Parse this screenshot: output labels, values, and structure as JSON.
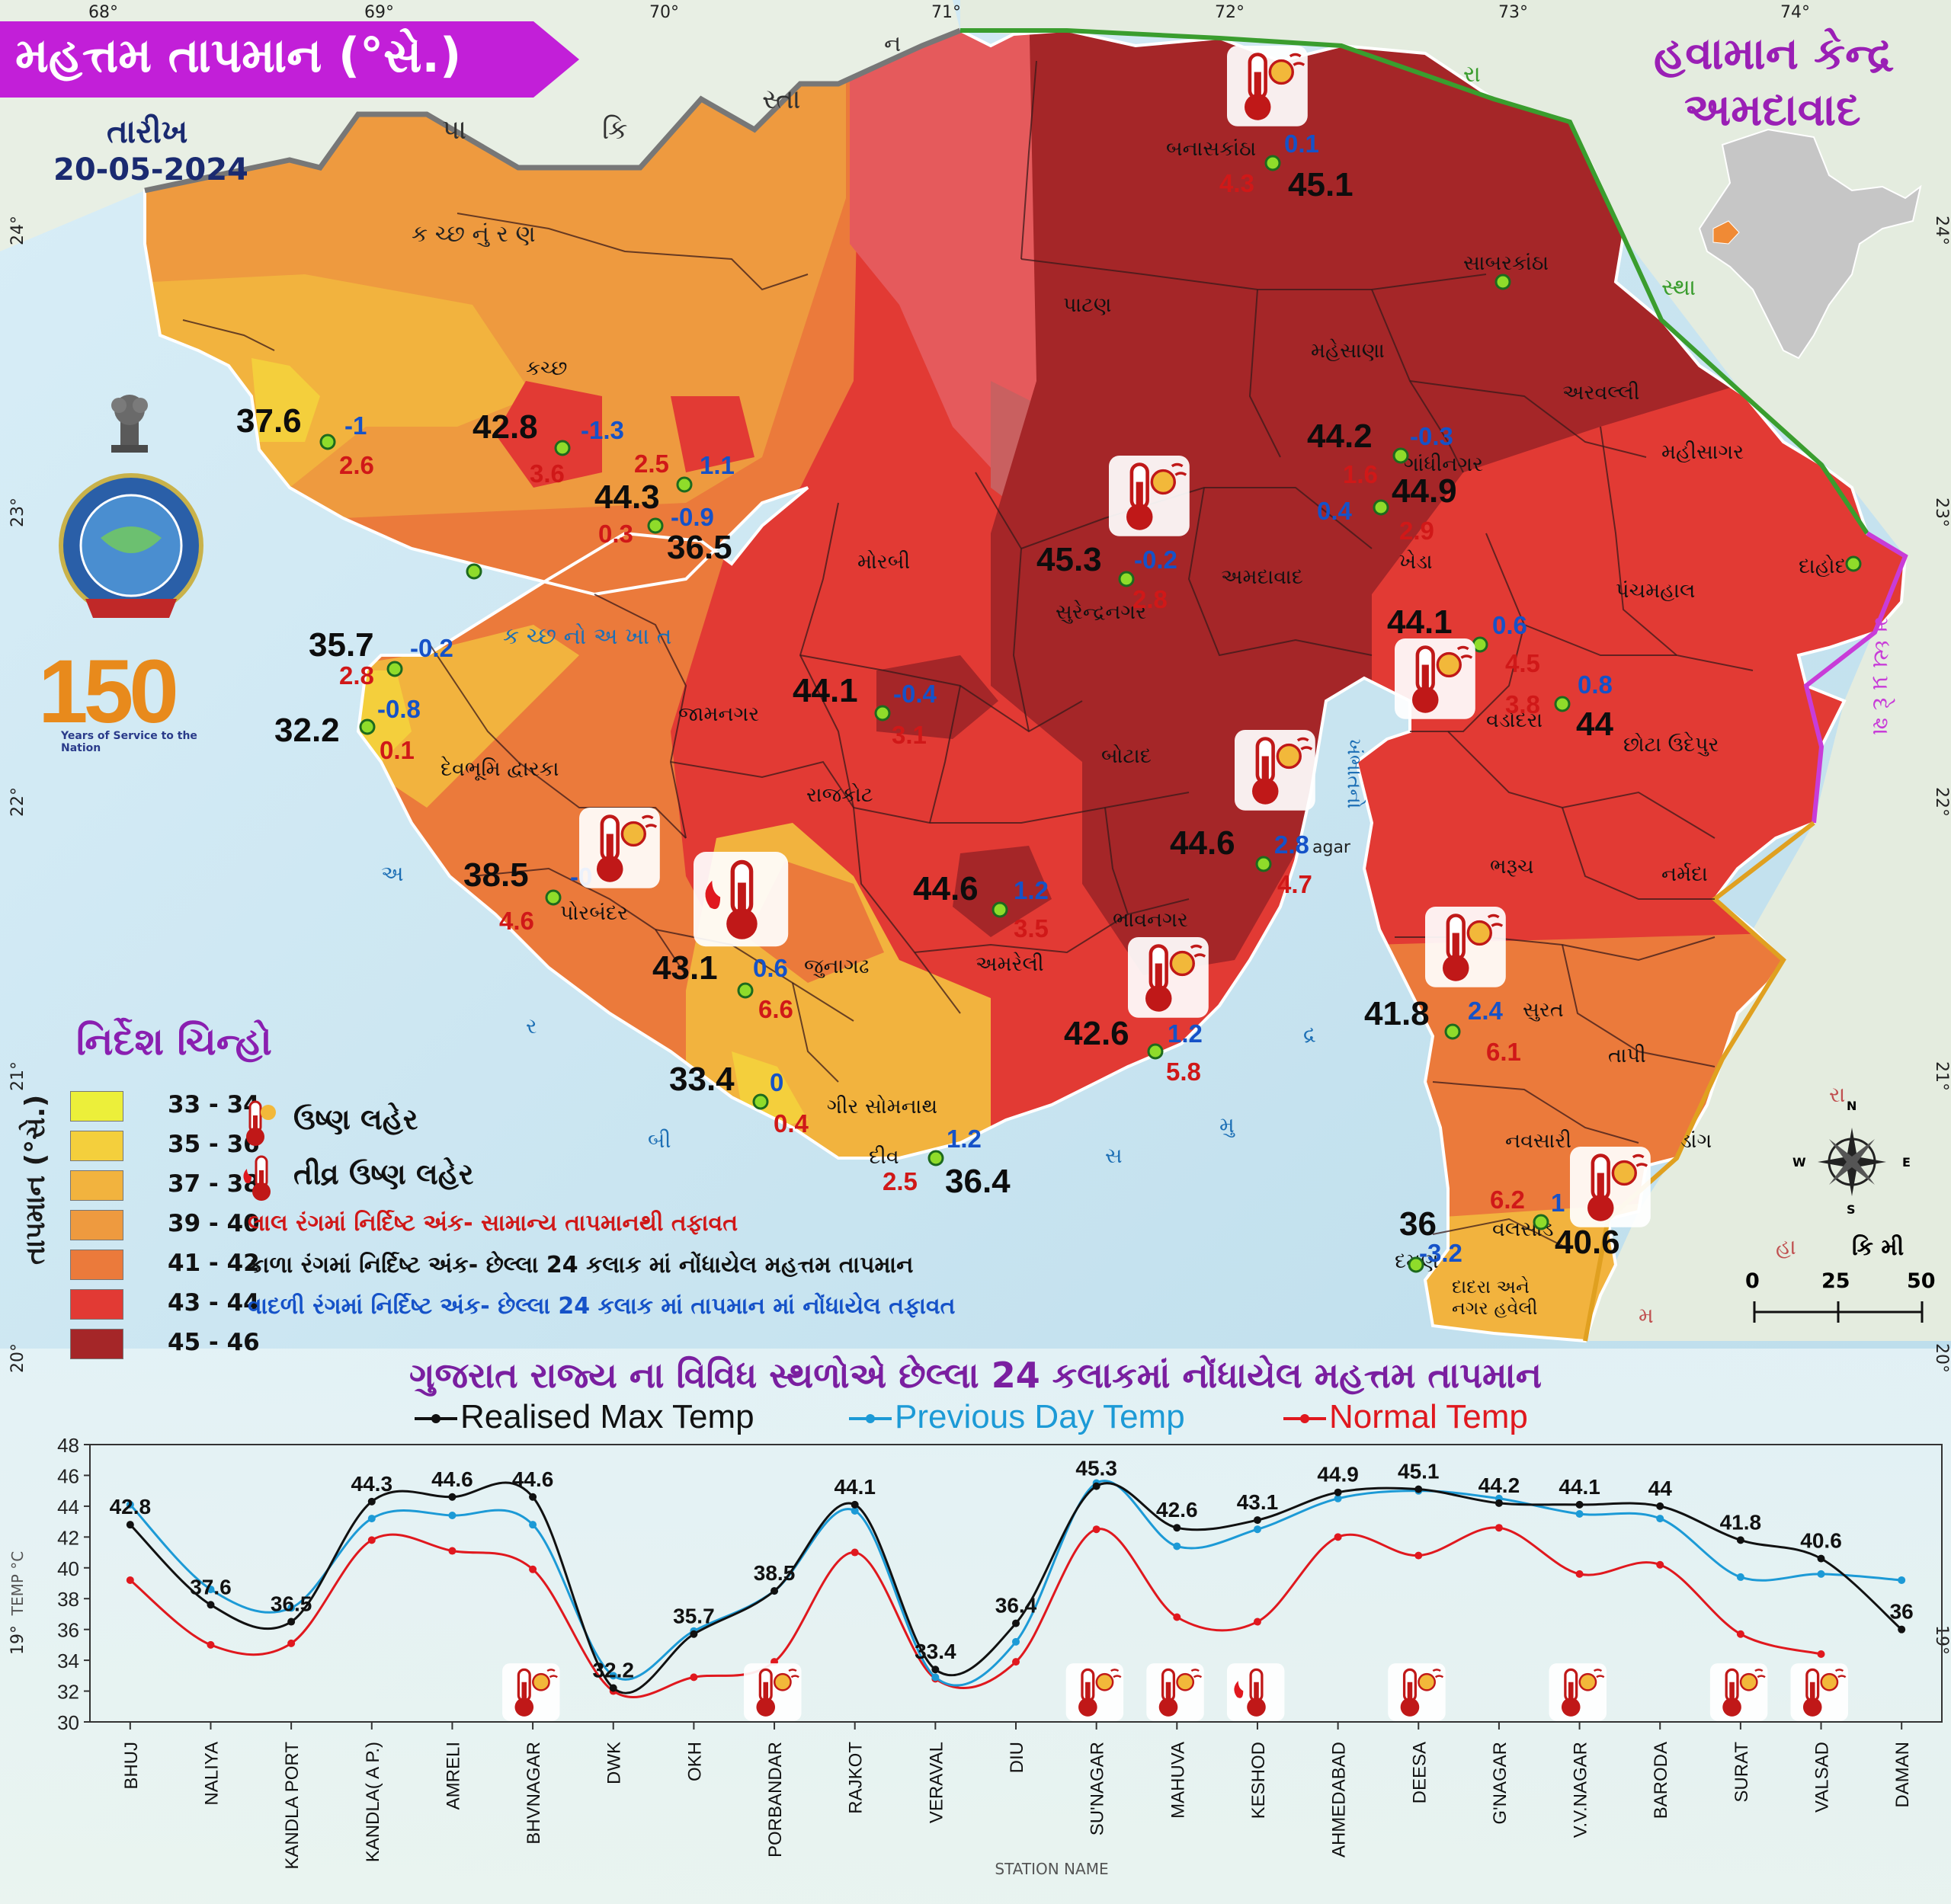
{
  "header": {
    "title": "મહત્તમ તાપમાન (°સે.)",
    "date_label": "તારીખ",
    "date": "20-05-2024",
    "centre_line1": "હવામાન કેન્દ્ર",
    "centre_line2": "અમદાવાદ",
    "anniversary_text": "Years of Service to the Nation",
    "anniversary_number": "150"
  },
  "coords": {
    "lon": [
      "68°",
      "69°",
      "70°",
      "71°",
      "72°",
      "73°",
      "74°"
    ],
    "lat": [
      "24°",
      "23°",
      "22°",
      "21°",
      "20°",
      "19°"
    ]
  },
  "places": [
    {
      "name": "કચ્છ",
      "k": "kutch"
    },
    {
      "name": "મોરબી",
      "k": "morbi"
    },
    {
      "name": "જામનગર",
      "k": "jamnagar"
    },
    {
      "name": "દેવભૂમિ દ્વારકા",
      "k": "dwarka"
    },
    {
      "name": "રાજકોટ",
      "k": "rajkot"
    },
    {
      "name": "પોરબંદર",
      "k": "porbandar"
    },
    {
      "name": "જુનાગઢ",
      "k": "junagadh"
    },
    {
      "name": "અમરેલી",
      "k": "amreli"
    },
    {
      "name": "ભાવનગર",
      "k": "bhavnagar"
    },
    {
      "name": "ગીર સોમનાથ",
      "k": "gir"
    },
    {
      "name": "દીવ",
      "k": "diu"
    },
    {
      "name": "બોટાદ",
      "k": "botad"
    },
    {
      "name": "સુરેન્દ્રનગર",
      "k": "snagar"
    },
    {
      "name": "પાટણ",
      "k": "patan"
    },
    {
      "name": "બનાસકાંઠા",
      "k": "banas"
    },
    {
      "name": "મહેસાણા",
      "k": "mehsana"
    },
    {
      "name": "સાબરકાંઠા",
      "k": "sabar"
    },
    {
      "name": "અરવલ્લી",
      "k": "aravalli"
    },
    {
      "name": "ગાંધીનગર",
      "k": "gnagar"
    },
    {
      "name": "અમદાવાદ",
      "k": "ahmedabad"
    },
    {
      "name": "ખેડા",
      "k": "kheda"
    },
    {
      "name": "મહીસાગર",
      "k": "mahisagar"
    },
    {
      "name": "પંચમહાલ",
      "k": "panch"
    },
    {
      "name": "દાહોદ",
      "k": "dahod"
    },
    {
      "name": "વડોદરા",
      "k": "vadodara"
    },
    {
      "name": "છોટા ઉદેપુર",
      "k": "chhota"
    },
    {
      "name": "ભરૂચ",
      "k": "bharuch"
    },
    {
      "name": "નર્મદા",
      "k": "narmada"
    },
    {
      "name": "સુરત",
      "k": "surat"
    },
    {
      "name": "તાપી",
      "k": "tapi"
    },
    {
      "name": "નવસારી",
      "k": "navsari"
    },
    {
      "name": "ડાંગ",
      "k": "dang"
    },
    {
      "name": "વલસાડ",
      "k": "valsad"
    },
    {
      "name": "દમણ",
      "k": "daman"
    },
    {
      "name": "દાદરા અને નગર હવેલી",
      "k": "dnh"
    }
  ],
  "map_texts": [
    {
      "t": "ક   ચ્છ   નું   ર   ણ",
      "k": "rann"
    },
    {
      "t": "ક  ચ્છ  નો  અ  ખા  ત",
      "k": "gulf"
    },
    {
      "t": "ખંભાતનો",
      "k": "khambhat"
    },
    {
      "t": "પા",
      "k": "pa"
    },
    {
      "t": "કિ",
      "k": "ki"
    },
    {
      "t": "સ્તા",
      "k": "sta"
    },
    {
      "t": "ન",
      "k": "na"
    },
    {
      "t": "રા",
      "k": "ra"
    },
    {
      "t": "સ્થા",
      "k": "stha"
    },
    {
      "t": "મ ધ્ય પ્ર દે શ",
      "k": "mp"
    },
    {
      "t": "અ",
      "k": "a"
    },
    {
      "t": "ર",
      "k": "r"
    },
    {
      "t": "બી",
      "k": "bi"
    },
    {
      "t": "સ",
      "k": "sa"
    },
    {
      "t": "મુ",
      "k": "mu"
    },
    {
      "t": "દ્ર",
      "k": "dra"
    },
    {
      "t": "મ",
      "k": "m"
    },
    {
      "t": "હા",
      "k": "ha"
    },
    {
      "t": "રા",
      "k": "ra2"
    },
    {
      "t": "agar",
      "k": "agar"
    }
  ],
  "stations": [
    {
      "k": "naliya",
      "max": "37.6",
      "prev": "-1",
      "diff": "2.6"
    },
    {
      "k": "bhuj",
      "max": "42.8",
      "prev": "-1.3",
      "diff": "3.6"
    },
    {
      "k": "kandla_ap",
      "max": "44.3",
      "prev": "1.1",
      "diff": "2.5"
    },
    {
      "k": "kandla_port",
      "max": "36.5",
      "prev": "-0.9",
      "diff": "0.3"
    },
    {
      "k": "okha",
      "max": "35.7",
      "prev": "-0.2",
      "diff": "2.8"
    },
    {
      "k": "dwarka",
      "max": "32.2",
      "prev": "-0.8",
      "diff": "0.1"
    },
    {
      "k": "porbandar",
      "max": "38.5",
      "prev": "-0",
      "diff": "4.6"
    },
    {
      "k": "keshod",
      "max": "43.1",
      "prev": "0.6",
      "diff": "6.6"
    },
    {
      "k": "veraval",
      "max": "33.4",
      "prev": "0",
      "diff": "0.4"
    },
    {
      "k": "diu",
      "max": "36.4",
      "prev": "1.2",
      "diff": "2.5"
    },
    {
      "k": "rajkot",
      "max": "44.1",
      "prev": "-0.4",
      "diff": "3.1"
    },
    {
      "k": "amreli",
      "max": "44.6",
      "prev": "1.2",
      "diff": "3.5"
    },
    {
      "k": "mahuva",
      "max": "42.6",
      "prev": "1.2",
      "diff": "5.8"
    },
    {
      "k": "bhavnagar",
      "max": "44.6",
      "prev": "2.8",
      "diff": "4.7"
    },
    {
      "k": "snagar",
      "max": "45.3",
      "prev": "-0.2",
      "diff": "2.8"
    },
    {
      "k": "deesa",
      "max": "45.1",
      "prev": "0.1",
      "diff": "4.3"
    },
    {
      "k": "gnagar",
      "max": "44.2",
      "prev": "-0.3",
      "diff": "1.6"
    },
    {
      "k": "ahmedabad",
      "max": "44.9",
      "prev": "0.4",
      "diff": "2.9"
    },
    {
      "k": "vvnagar",
      "max": "44.1",
      "prev": "0.6",
      "diff": "4.5"
    },
    {
      "k": "baroda",
      "max": "44",
      "prev": "0.8",
      "diff": "3.8"
    },
    {
      "k": "surat",
      "max": "41.8",
      "prev": "2.4",
      "diff": "6.1"
    },
    {
      "k": "valsad",
      "max": "40.6",
      "prev": "1",
      "diff": "6.2"
    },
    {
      "k": "daman",
      "max": "36",
      "prev": "-3.2",
      "diff": ""
    }
  ],
  "legend": {
    "heading": "નિર્દેશ ચિન્હો",
    "vertical_label": "તાપમાન (°સે.)",
    "ranges": [
      {
        "label": "33 - 34",
        "color": "#ecef3a"
      },
      {
        "label": "35 - 36",
        "color": "#f4cf3c"
      },
      {
        "label": "37 - 38",
        "color": "#f2b33e"
      },
      {
        "label": "39 - 40",
        "color": "#ee9a3f"
      },
      {
        "label": "41 - 42",
        "color": "#eb7a3b"
      },
      {
        "label": "43 - 44",
        "color": "#e23a34"
      },
      {
        "label": "45 - 46",
        "color": "#a52628"
      }
    ],
    "heatwave": "ઉષ્ણ લહેર",
    "severe_heatwave": "તીવ્ર ઉષ્ણ લહેર",
    "note_red": "લાલ રંગમાં નિર્દિષ્ટ અંક- સામાન્ય તાપમાનથી તફાવત",
    "note_black": "કાળા રંગમાં નિર્દિષ્ટ અંક- છેલ્લા 24 કલાક માં નોંધાયેલ મહત્તમ તાપમાન",
    "note_blue": "વાદળી રંગમાં નિર્દિષ્ટ અંક- છેલ્લા 24 કલાક માં  તાપમાન માં નોંધાયેલ તફાવત"
  },
  "scale": {
    "title": "કિ મી",
    "ticks": [
      "0",
      "25",
      "50"
    ]
  },
  "compass": {
    "n": "N",
    "s": "S",
    "e": "E",
    "w": "W"
  },
  "chart_data": {
    "type": "line",
    "title": "ગુજરાત રાજ્ય ના વિવિધ સ્થળોએ છેલ્લા 24 કલાકમાં નોંધાયેલ મહત્તમ તાપમાન",
    "xlabel": "STATION NAME",
    "ylabel": "TEMP °C",
    "ylim": [
      30,
      48
    ],
    "yticks": [
      30,
      32,
      34,
      36,
      38,
      40,
      42,
      44,
      46,
      48
    ],
    "categories": [
      "BHUJ",
      "NALIYA",
      "KANDLA PORT",
      "KANDLA( A P.)",
      "AMRELI",
      "BHVNAGAR",
      "DWK",
      "OKH",
      "PORBANDAR",
      "RAJKOT",
      "VERAVAL",
      "DIU",
      "SU'NAGAR",
      "MAHUVA",
      "KESHOD",
      "AHMEDABAD",
      "DEESA",
      "G'NAGAR",
      "V.V.NAGAR",
      "BARODA",
      "SURAT",
      "VALSAD",
      "DAMAN"
    ],
    "series": [
      {
        "name": "Realised Max Temp",
        "color": "#111111",
        "values": [
          42.8,
          37.6,
          36.5,
          44.3,
          44.6,
          44.6,
          32.2,
          35.7,
          38.5,
          44.1,
          33.4,
          36.4,
          45.3,
          42.6,
          43.1,
          44.9,
          45.1,
          44.2,
          44.1,
          44,
          41.8,
          40.6,
          36
        ]
      },
      {
        "name": "Previous Day Temp",
        "color": "#1c9ad6",
        "values": [
          44.1,
          38.6,
          37.4,
          43.2,
          43.4,
          42.8,
          33,
          35.9,
          38.5,
          43.7,
          32.9,
          35.2,
          45.5,
          41.4,
          42.5,
          44.5,
          45,
          44.5,
          43.5,
          43.2,
          39.4,
          39.6,
          39.2
        ]
      },
      {
        "name": "Normal Temp",
        "color": "#e0181e",
        "values": [
          39.2,
          35,
          35.1,
          41.8,
          41.1,
          39.9,
          32,
          32.9,
          33.9,
          41,
          32.8,
          33.9,
          42.5,
          36.8,
          36.5,
          42,
          40.8,
          42.6,
          39.6,
          40.2,
          35.7,
          34.4,
          null
        ]
      }
    ],
    "labels": [
      "42.8",
      "37.6",
      "36.5",
      "44.3",
      "44.6",
      "44.6",
      "32.2",
      "35.7",
      "38.5",
      "44.1",
      "33.4",
      "36.4",
      "45.3",
      "42.6",
      "43.1",
      "44.9",
      "45.1",
      "44.2",
      "44.1",
      "44",
      "41.8",
      "40.6",
      "36"
    ],
    "heatwave_icons": [
      "BHVNAGAR",
      "PORBANDAR",
      "SU'NAGAR",
      "MAHUVA",
      "DEESA",
      "V.V.NAGAR",
      "SURAT",
      "VALSAD"
    ],
    "severe_heatwave_icons": [
      "KESHOD"
    ]
  }
}
